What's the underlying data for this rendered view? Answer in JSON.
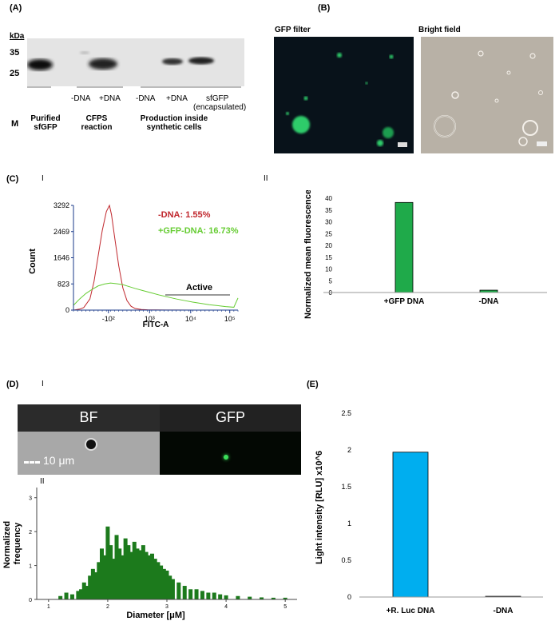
{
  "panel_a": {
    "letter": "(A)",
    "kda": "kDa",
    "markers": [
      "35",
      "25"
    ],
    "lanes_top": [
      "-DNA",
      "+DNA",
      "-DNA",
      "+DNA",
      "sfGFP",
      "(encapsulated)"
    ],
    "group_m": "M",
    "group_purified": [
      "Purified",
      "sfGFP"
    ],
    "group_cfps": [
      "CFPS",
      "reaction"
    ],
    "group_prod": [
      "Production inside",
      "synthetic cells"
    ]
  },
  "panel_b": {
    "letter": "(B)",
    "gfp_title": "GFP  filter",
    "bf_title": "Bright field"
  },
  "panel_c": {
    "letter": "(C)",
    "sub_i": "I",
    "sub_ii": "II",
    "legend_neg": "-DNA: 1.55%",
    "legend_pos": "+GFP-DNA: 16.73%",
    "gate_label": "Active",
    "colors": {
      "neg": "#c0272d",
      "pos": "#66cc33",
      "bar": "#1faa4a"
    }
  },
  "panel_d": {
    "letter": "(D)",
    "sub_i": "I",
    "sub_ii": "II",
    "bf": "BF",
    "gfp": "GFP",
    "scale": "10 μm"
  },
  "panel_e": {
    "letter": "(E)",
    "color": "#00aeef"
  },
  "chart_data": [
    {
      "id": "flow-histogram",
      "type": "line",
      "xlabel": "FITC-A",
      "ylabel": "Count",
      "yticks": [
        "0",
        "823",
        "1646",
        "2469",
        "3292"
      ],
      "xticks": [
        "-10^2",
        "10^3",
        "10^4",
        "10^5"
      ],
      "ylim": [
        0,
        3292
      ],
      "series": [
        {
          "name": "-DNA: 1.55%",
          "color": "#c0272d",
          "x": [
            0.0,
            0.3,
            0.5,
            0.8,
            1.0,
            1.2,
            1.4,
            1.6,
            1.75,
            1.85,
            2.0,
            2.2,
            2.4,
            2.6,
            2.8,
            3.0,
            3.3,
            3.6,
            4.0,
            4.5,
            5.0,
            6.0,
            7.0,
            8.0
          ],
          "y": [
            0,
            30,
            80,
            350,
            900,
            1700,
            2500,
            3100,
            3292,
            3000,
            2300,
            1400,
            700,
            300,
            120,
            50,
            20,
            10,
            5,
            3,
            2,
            1,
            0,
            0
          ]
        },
        {
          "name": "+GFP-DNA: 16.73%",
          "color": "#66cc33",
          "x": [
            0.0,
            0.3,
            0.6,
            0.9,
            1.2,
            1.5,
            1.8,
            2.1,
            2.4,
            2.7,
            3.0,
            3.4,
            3.8,
            4.2,
            4.6,
            5.0,
            5.4,
            5.8,
            6.2,
            6.6,
            7.0,
            7.4,
            7.8,
            8.0
          ],
          "y": [
            150,
            350,
            520,
            650,
            760,
            820,
            850,
            830,
            800,
            740,
            680,
            610,
            540,
            470,
            410,
            350,
            300,
            250,
            210,
            170,
            140,
            110,
            90,
            380
          ]
        }
      ]
    },
    {
      "id": "mean-fluorescence",
      "type": "bar",
      "ylabel": "Normalized mean fluorescence",
      "categories": [
        "+GFP DNA",
        "-DNA"
      ],
      "values": [
        38.2,
        1.0
      ],
      "ylim": [
        0,
        40
      ],
      "yticks": [
        "0",
        "5",
        "10",
        "15",
        "20",
        "25",
        "30",
        "35",
        "40"
      ]
    },
    {
      "id": "diameter-distribution",
      "type": "bar",
      "xlabel": "Diameter [μM]",
      "ylabel": "Normalized frequency",
      "xticks": [
        "1",
        "2",
        "3",
        "4",
        "5"
      ],
      "yticks": [
        "0",
        "1",
        "2",
        "3"
      ],
      "xlim": [
        0.8,
        5.2
      ],
      "ylim": [
        0,
        3.3
      ],
      "x": [
        1.2,
        1.3,
        1.4,
        1.5,
        1.55,
        1.6,
        1.65,
        1.7,
        1.75,
        1.8,
        1.85,
        1.9,
        1.95,
        2.0,
        2.05,
        2.1,
        2.15,
        2.2,
        2.25,
        2.3,
        2.35,
        2.4,
        2.45,
        2.5,
        2.55,
        2.6,
        2.65,
        2.7,
        2.75,
        2.8,
        2.85,
        2.9,
        2.95,
        3.0,
        3.05,
        3.1,
        3.2,
        3.3,
        3.4,
        3.5,
        3.6,
        3.7,
        3.8,
        3.9,
        4.0,
        4.2,
        4.4,
        4.6,
        4.8,
        5.0
      ],
      "values": [
        0.1,
        0.2,
        0.15,
        0.25,
        0.3,
        0.5,
        0.4,
        0.7,
        0.9,
        0.8,
        1.1,
        1.5,
        1.3,
        2.15,
        1.6,
        1.2,
        1.9,
        1.5,
        1.3,
        1.8,
        1.6,
        1.4,
        1.7,
        1.5,
        1.45,
        1.6,
        1.4,
        1.3,
        1.35,
        1.2,
        1.1,
        1.0,
        0.9,
        0.85,
        0.7,
        0.6,
        0.5,
        0.4,
        0.3,
        0.3,
        0.25,
        0.2,
        0.2,
        0.15,
        0.12,
        0.1,
        0.08,
        0.06,
        0.05,
        0.05
      ]
    },
    {
      "id": "luciferase",
      "type": "bar",
      "ylabel": "Light intensity [RLU] x10^6",
      "categories": [
        "+R. Luc DNA",
        "-DNA"
      ],
      "values": [
        1.97,
        0.01
      ],
      "ylim": [
        0,
        2.5
      ],
      "yticks": [
        "0",
        "0.5",
        "1",
        "1.5",
        "2",
        "2.5"
      ]
    }
  ]
}
